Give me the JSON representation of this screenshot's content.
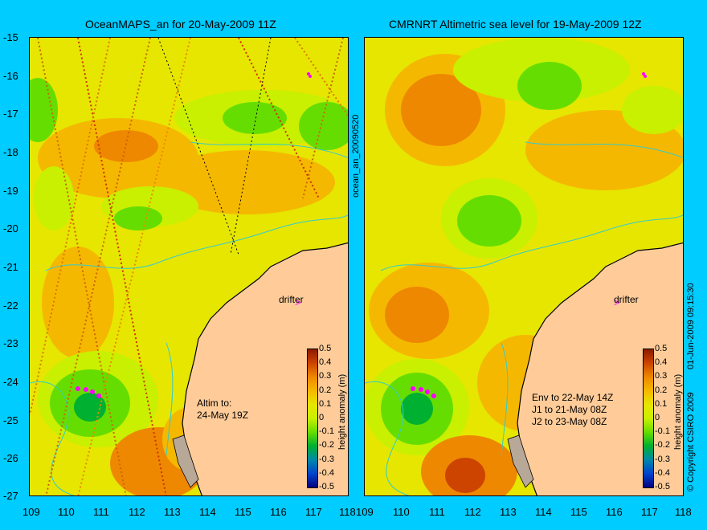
{
  "left": {
    "title": "OceanMAPS_an for 20-May-2009 11Z",
    "annotation": "Altim to:\n24-May 19Z",
    "drifter_label": "drifter",
    "side_label": "ocean_an_20090520"
  },
  "right": {
    "title": "CMRNRT Altimetric sea level  for 19-May-2009 12Z",
    "annotation": "Env to 22-May 14Z\nJ1 to 21-May 08Z\nJ2 to 23-May 08Z",
    "drifter_label": "drifter",
    "side_label": "01-Jun-2009 09:15:30",
    "copyright": "© Copyright CSIRO 2009"
  },
  "lat_ticks": [
    "-15",
    "-16",
    "-17",
    "-18",
    "-19",
    "-20",
    "-21",
    "-22",
    "-23",
    "-24",
    "-25",
    "-26",
    "-27"
  ],
  "lon_ticks": [
    "109",
    "110",
    "111",
    "112",
    "113",
    "114",
    "115",
    "116",
    "117",
    "118"
  ],
  "colorbar": {
    "label": "height anomaly (m)",
    "ticks": [
      "0.5",
      "0.4",
      "0.3",
      "0.2",
      "0.1",
      "0",
      "-0.1",
      "-0.2",
      "-0.3",
      "-0.4",
      "-0.5"
    ],
    "colors": [
      "#8b1a00",
      "#cc4400",
      "#ee8800",
      "#f5b800",
      "#e6e600",
      "#c8f000",
      "#66dd00",
      "#00b030",
      "#0088aa",
      "#0044cc",
      "#000080"
    ]
  },
  "colors": {
    "background": "#00ccff",
    "land": "#ffcc99",
    "contour": "#33cccc"
  }
}
